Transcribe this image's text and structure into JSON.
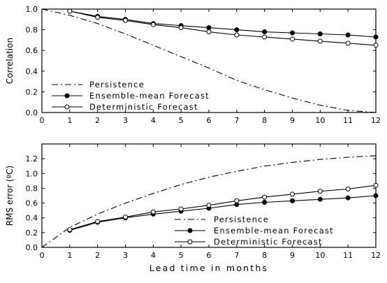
{
  "chart_data": [
    {
      "type": "line",
      "title": "",
      "ylabel": "Correlation",
      "xlabel": "",
      "xlim": [
        0,
        12
      ],
      "ylim": [
        0,
        1.0
      ],
      "x_ticks": [
        0,
        1,
        2,
        3,
        4,
        5,
        6,
        7,
        8,
        9,
        10,
        11,
        12
      ],
      "y_ticks": [
        0.0,
        0.2,
        0.4,
        0.6,
        0.8,
        1.0
      ],
      "y_tick_labels": [
        "0.0",
        "0.2",
        "0.4",
        "0.6",
        "0.8",
        "1.0"
      ],
      "legend_position": "lower-left",
      "grid": false,
      "series": [
        {
          "name": "Persistence",
          "style": "dash-dot",
          "marker": "none",
          "x": [
            0,
            1,
            2,
            3,
            4,
            5,
            6,
            7,
            8,
            9,
            10,
            11,
            12
          ],
          "values": [
            1.0,
            0.94,
            0.86,
            0.76,
            0.65,
            0.54,
            0.43,
            0.31,
            0.22,
            0.14,
            0.07,
            0.02,
            0.0
          ]
        },
        {
          "name": "Ensemble-mean Forecast",
          "style": "solid",
          "marker": "filled-circle",
          "x": [
            1,
            2,
            3,
            4,
            5,
            6,
            7,
            8,
            9,
            10,
            11,
            12
          ],
          "values": [
            0.98,
            0.93,
            0.9,
            0.86,
            0.84,
            0.82,
            0.8,
            0.78,
            0.77,
            0.76,
            0.75,
            0.73
          ]
        },
        {
          "name": "Deterministic Forecast",
          "style": "solid",
          "marker": "open-circle",
          "x": [
            1,
            2,
            3,
            4,
            5,
            6,
            7,
            8,
            9,
            10,
            11,
            12
          ],
          "values": [
            0.98,
            0.92,
            0.89,
            0.85,
            0.82,
            0.78,
            0.75,
            0.73,
            0.71,
            0.69,
            0.67,
            0.65
          ]
        }
      ]
    },
    {
      "type": "line",
      "title": "",
      "ylabel": "RMS error (ºC)",
      "xlabel": "Lead time in months",
      "xlim": [
        0,
        12
      ],
      "ylim": [
        0,
        1.4
      ],
      "x_ticks": [
        0,
        1,
        2,
        3,
        4,
        5,
        6,
        7,
        8,
        9,
        10,
        11,
        12
      ],
      "y_ticks": [
        0.0,
        0.2,
        0.4,
        0.6,
        0.8,
        1.0,
        1.2
      ],
      "y_tick_labels": [
        "0.0",
        "0.2",
        "0.4",
        "0.6",
        "0.8",
        "1.0",
        "1.2"
      ],
      "legend_position": "lower-right",
      "grid": false,
      "series": [
        {
          "name": "Persistence",
          "style": "dash-dot",
          "marker": "none",
          "x": [
            0,
            1,
            2,
            3,
            4,
            5,
            6,
            7,
            8,
            9,
            10,
            11,
            12
          ],
          "values": [
            0.0,
            0.27,
            0.45,
            0.6,
            0.73,
            0.85,
            0.95,
            1.03,
            1.1,
            1.15,
            1.19,
            1.22,
            1.24
          ]
        },
        {
          "name": "Ensemble-mean Forecast",
          "style": "solid",
          "marker": "filled-circle",
          "x": [
            1,
            2,
            3,
            4,
            5,
            6,
            7,
            8,
            9,
            10,
            11,
            12
          ],
          "values": [
            0.23,
            0.34,
            0.4,
            0.45,
            0.49,
            0.53,
            0.58,
            0.61,
            0.63,
            0.65,
            0.67,
            0.7
          ]
        },
        {
          "name": "Deterministic Forecast",
          "style": "solid",
          "marker": "open-circle",
          "x": [
            1,
            2,
            3,
            4,
            5,
            6,
            7,
            8,
            9,
            10,
            11,
            12
          ],
          "values": [
            0.24,
            0.35,
            0.41,
            0.48,
            0.52,
            0.57,
            0.63,
            0.68,
            0.72,
            0.76,
            0.79,
            0.84
          ]
        }
      ]
    }
  ]
}
